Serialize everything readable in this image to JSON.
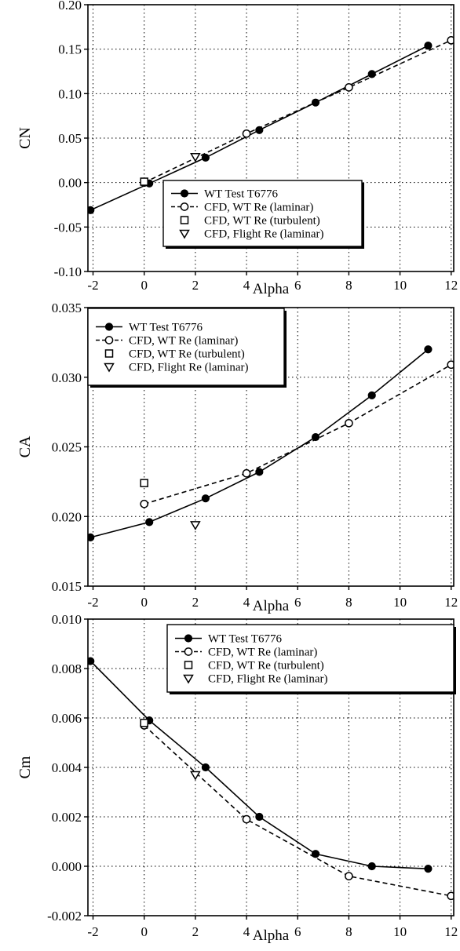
{
  "chart_data": [
    {
      "type": "line",
      "xlabel": "Alpha",
      "ylabel": "CN",
      "xlim": [
        -2.2,
        12.1
      ],
      "ylim": [
        -0.1,
        0.2
      ],
      "xticks": [
        "-2",
        "0",
        "2",
        "4",
        "6",
        "8",
        "10",
        "12"
      ],
      "yticks": [
        "-0.10",
        "-0.05",
        "0.00",
        "0.05",
        "0.10",
        "0.15",
        "0.20"
      ],
      "grid": true,
      "legend_position": "bottom-right",
      "series": [
        {
          "name": "WT Test T6776",
          "style": "solid-filled-circle",
          "x": [
            -2.1,
            0.2,
            2.4,
            4.5,
            6.7,
            8.9,
            11.1
          ],
          "y": [
            -0.031,
            -0.001,
            0.028,
            0.059,
            0.09,
            0.122,
            0.154
          ]
        },
        {
          "name": "CFD, WT Re (laminar)",
          "style": "dashed-open-circle",
          "x": [
            0,
            4,
            8,
            12
          ],
          "y": [
            0.0,
            0.055,
            0.107,
            0.16
          ]
        },
        {
          "name": "CFD, WT Re (turbulent)",
          "style": "open-square",
          "x": [
            0
          ],
          "y": [
            0.001
          ]
        },
        {
          "name": "CFD, Flight Re (laminar)",
          "style": "open-triangle",
          "x": [
            2
          ],
          "y": [
            0.029
          ]
        }
      ]
    },
    {
      "type": "line",
      "xlabel": "Alpha",
      "ylabel": "CA",
      "xlim": [
        -2.2,
        12.1
      ],
      "ylim": [
        0.015,
        0.035
      ],
      "xticks": [
        "-2",
        "0",
        "2",
        "4",
        "6",
        "8",
        "10",
        "12"
      ],
      "yticks": [
        "0.015",
        "0.020",
        "0.025",
        "0.030",
        "0.035"
      ],
      "grid": true,
      "legend_position": "top-left",
      "series": [
        {
          "name": "WT Test T6776",
          "style": "solid-filled-circle",
          "x": [
            -2.1,
            0.2,
            2.4,
            4.5,
            6.7,
            8.9,
            11.1
          ],
          "y": [
            0.0185,
            0.0196,
            0.0213,
            0.0232,
            0.0257,
            0.0287,
            0.032
          ]
        },
        {
          "name": "CFD, WT Re (laminar)",
          "style": "dashed-open-circle",
          "x": [
            0,
            4,
            8,
            12
          ],
          "y": [
            0.0209,
            0.0231,
            0.0267,
            0.0309
          ]
        },
        {
          "name": "CFD, WT Re (turbulent)",
          "style": "open-square",
          "x": [
            0
          ],
          "y": [
            0.0224
          ]
        },
        {
          "name": "CFD, Flight Re (laminar)",
          "style": "open-triangle",
          "x": [
            2
          ],
          "y": [
            0.0194
          ]
        }
      ]
    },
    {
      "type": "line",
      "xlabel": "Alpha",
      "ylabel": "Cm",
      "xlim": [
        -2.2,
        12.1
      ],
      "ylim": [
        -0.002,
        0.01
      ],
      "xticks": [
        "-2",
        "0",
        "2",
        "4",
        "6",
        "8",
        "10",
        "12"
      ],
      "yticks": [
        "-0.002",
        "0.000",
        "0.002",
        "0.004",
        "0.006",
        "0.008",
        "0.010"
      ],
      "grid": true,
      "legend_position": "top-right",
      "series": [
        {
          "name": "WT Test T6776",
          "style": "solid-filled-circle",
          "x": [
            -2.1,
            0.2,
            2.4,
            4.5,
            6.7,
            8.9,
            11.1
          ],
          "y": [
            0.0083,
            0.0059,
            0.004,
            0.002,
            0.0005,
            0.0,
            -0.0001
          ]
        },
        {
          "name": "CFD, WT Re (laminar)",
          "style": "dashed-open-circle",
          "x": [
            0,
            4,
            8,
            12
          ],
          "y": [
            0.0057,
            0.0019,
            -0.0004,
            -0.0012
          ]
        },
        {
          "name": "CFD, WT Re (turbulent)",
          "style": "open-square",
          "x": [
            0
          ],
          "y": [
            0.0058
          ]
        },
        {
          "name": "CFD, Flight Re (laminar)",
          "style": "open-triangle",
          "x": [
            2
          ],
          "y": [
            0.0037
          ]
        }
      ]
    }
  ]
}
